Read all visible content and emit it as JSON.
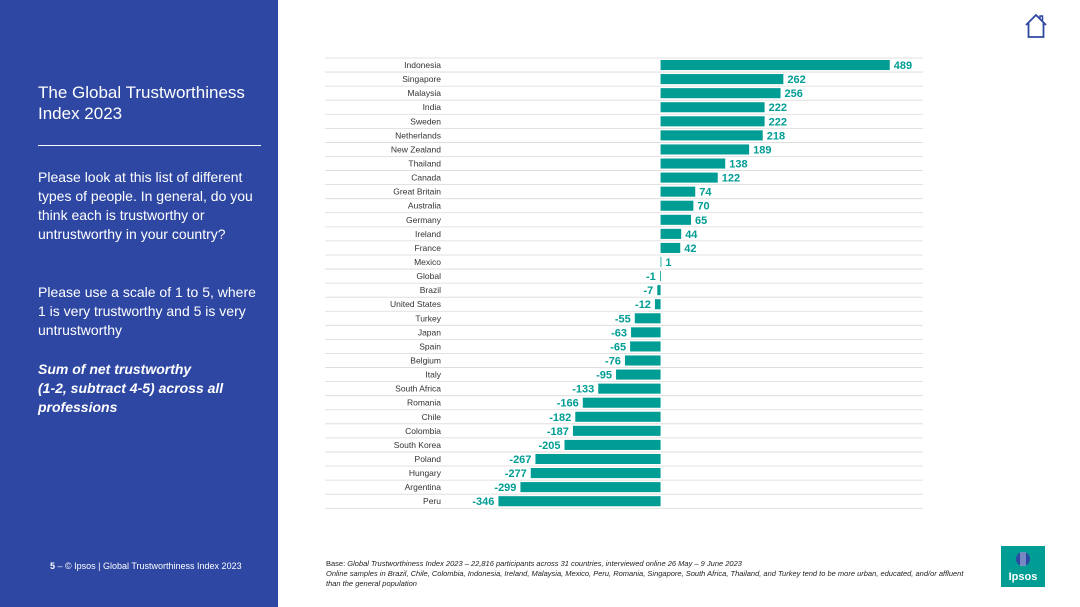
{
  "sidebar": {
    "title": "The Global Trustworthiness Index 2023",
    "question": "Please look at this list of different types of people. In general, do you think each is trustworthy or untrustworthy in your country?",
    "scale_note": "Please use a scale of 1 to 5, where 1 is very trustworthy and 5 is very untrustworthy",
    "measure_line1": "Sum of net trustworthy",
    "measure_line2": "(1-2, subtract 4-5) across all professions",
    "page_number": "5",
    "footer_text": " – © Ipsos | Global Trustworthiness Index 2023"
  },
  "base": {
    "label": "Base:",
    "line1": " Global Trustworthiness Index 2023 – 22,816 participants across 31 countries, interviewed online 26 May – 9 June 2023",
    "line2": "Online samples in Brazil, Chile, Colombia, Indonesia, Ireland, Malaysia, Mexico, Peru, Romania, Singapore, South Africa, Thailand, and Turkey tend to be more urban, educated, and/or affluent than the general population"
  },
  "logo": {
    "text": "Ipsos"
  },
  "colors": {
    "sidebar": "#2e47a2",
    "bar": "#009d94",
    "label": "#009d94",
    "logo": "#009d94"
  },
  "chart_data": {
    "type": "bar",
    "orientation": "horizontal",
    "categories": [
      "Indonesia",
      "Singapore",
      "Malaysia",
      "India",
      "Sweden",
      "Netherlands",
      "New Zealand",
      "Thailand",
      "Canada",
      "Great Britain",
      "Australia",
      "Germany",
      "Ireland",
      "France",
      "Mexico",
      "Global",
      "Brazil",
      "United States",
      "Turkey",
      "Japan",
      "Spain",
      "Belgium",
      "Italy",
      "South Africa",
      "Romania",
      "Chile",
      "Colombia",
      "South Korea",
      "Poland",
      "Hungary",
      "Argentina",
      "Peru"
    ],
    "values": [
      489,
      262,
      256,
      222,
      222,
      218,
      189,
      138,
      122,
      74,
      70,
      65,
      44,
      42,
      1,
      -1,
      -7,
      -12,
      -55,
      -63,
      -65,
      -76,
      -95,
      -133,
      -166,
      -182,
      -187,
      -205,
      -267,
      -277,
      -299,
      -346
    ],
    "xlim": [
      -460,
      560
    ],
    "data_labels": true
  }
}
